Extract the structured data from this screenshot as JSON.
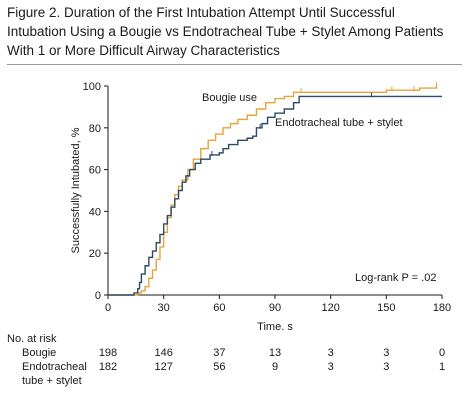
{
  "figure": {
    "title_lines": [
      "Figure 2. Duration of the First Intubation Attempt Until Successful",
      "Intubation Using a Bougie vs Endotracheal Tube + Stylet Among Patients",
      "With 1 or More Difficult Airway Characteristics"
    ]
  },
  "chart_data": {
    "type": "line",
    "xlabel": "Time, s",
    "ylabel": "Successfully Intubated, %",
    "xlim": [
      0,
      180
    ],
    "ylim": [
      0,
      100
    ],
    "x_ticks": [
      0,
      30,
      60,
      90,
      120,
      150,
      180
    ],
    "y_ticks": [
      0,
      20,
      40,
      60,
      80,
      100
    ],
    "annotation": "Log-rank P = .02",
    "series": [
      {
        "name": "Bougie use",
        "color": "#e8a33a",
        "points": [
          [
            0,
            0
          ],
          [
            13,
            0
          ],
          [
            16,
            1
          ],
          [
            18,
            2
          ],
          [
            20,
            4
          ],
          [
            22,
            8
          ],
          [
            24,
            12
          ],
          [
            26,
            17
          ],
          [
            28,
            23
          ],
          [
            30,
            30
          ],
          [
            32,
            37
          ],
          [
            34,
            43
          ],
          [
            36,
            48
          ],
          [
            38,
            52
          ],
          [
            40,
            55
          ],
          [
            43,
            60
          ],
          [
            46,
            65
          ],
          [
            50,
            70
          ],
          [
            54,
            74
          ],
          [
            58,
            77
          ],
          [
            62,
            80
          ],
          [
            66,
            82
          ],
          [
            70,
            84
          ],
          [
            75,
            86
          ],
          [
            80,
            89
          ],
          [
            85,
            92
          ],
          [
            90,
            94
          ],
          [
            95,
            95
          ],
          [
            100,
            97
          ],
          [
            110,
            97
          ],
          [
            120,
            97
          ],
          [
            140,
            97
          ],
          [
            150,
            98
          ],
          [
            165,
            98
          ],
          [
            168,
            99
          ],
          [
            172,
            99
          ],
          [
            177,
            100
          ]
        ],
        "censor_x": [
          104,
          153,
          165,
          177
        ]
      },
      {
        "name": "Endotracheal tube + stylet",
        "color": "#2c4a66",
        "points": [
          [
            0,
            0
          ],
          [
            12,
            0
          ],
          [
            14,
            1
          ],
          [
            16,
            3
          ],
          [
            17,
            6
          ],
          [
            18,
            10
          ],
          [
            20,
            14
          ],
          [
            22,
            18
          ],
          [
            24,
            21
          ],
          [
            26,
            25
          ],
          [
            28,
            29
          ],
          [
            30,
            34
          ],
          [
            32,
            38
          ],
          [
            34,
            42
          ],
          [
            36,
            46
          ],
          [
            38,
            50
          ],
          [
            40,
            54
          ],
          [
            42,
            57
          ],
          [
            44,
            60
          ],
          [
            47,
            63
          ],
          [
            50,
            65
          ],
          [
            55,
            67
          ],
          [
            60,
            68
          ],
          [
            62,
            70
          ],
          [
            65,
            72
          ],
          [
            70,
            74
          ],
          [
            75,
            75
          ],
          [
            78,
            76
          ],
          [
            80,
            80
          ],
          [
            83,
            82
          ],
          [
            86,
            85
          ],
          [
            90,
            87
          ],
          [
            95,
            89
          ],
          [
            100,
            92
          ],
          [
            103,
            95
          ],
          [
            120,
            95
          ],
          [
            150,
            95
          ],
          [
            180,
            95
          ]
        ],
        "censor_x": [
          56,
          82,
          142
        ]
      }
    ]
  },
  "number_at_risk": {
    "heading": "No. at risk",
    "times": [
      0,
      30,
      60,
      90,
      120,
      150,
      180
    ],
    "rows": [
      {
        "label_lines": [
          "Bougie"
        ],
        "counts": [
          "198",
          "146",
          "37",
          "13",
          "3",
          "3",
          "0"
        ]
      },
      {
        "label_lines": [
          "Endotracheal",
          "tube + stylet"
        ],
        "counts": [
          "182",
          "127",
          "56",
          "9",
          "3",
          "3",
          "1"
        ]
      }
    ]
  }
}
